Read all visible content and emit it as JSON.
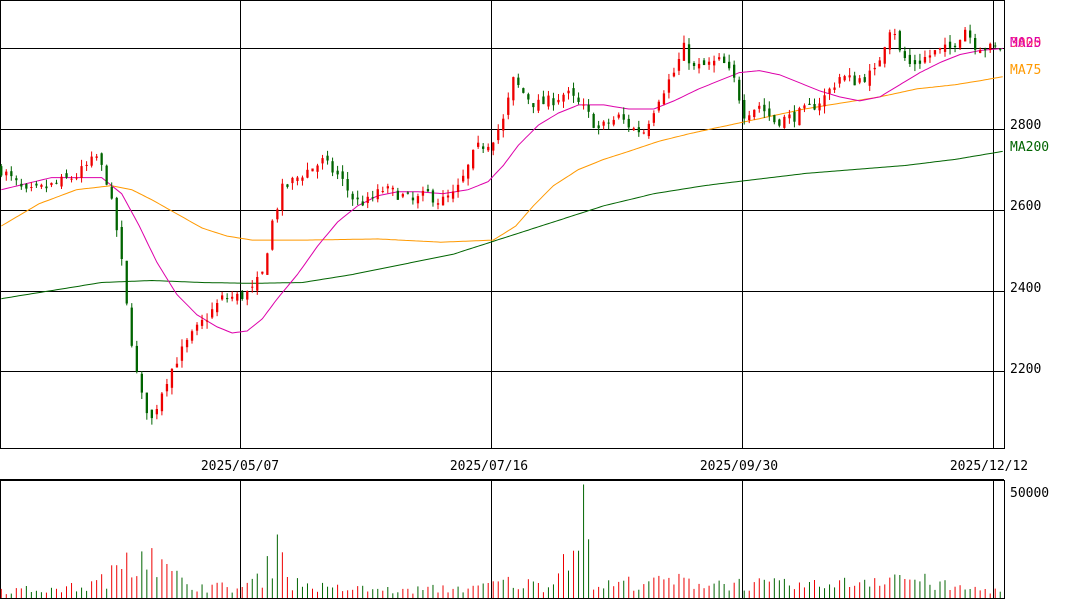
{
  "colors": {
    "up": "#ee0000",
    "down": "#006400",
    "ma25": "#dd00aa",
    "ma75": "#ff9900",
    "ma200": "#006400",
    "grid": "#000000",
    "price_text": "#ff3366"
  },
  "chart_data": [
    {
      "type": "candlestick",
      "title": "",
      "y_ticks": [
        2200,
        2400,
        2600,
        2800
      ],
      "ylim": [
        2010,
        3120
      ],
      "x_tick_labels": [
        "2025/05/07",
        "2025/07/16",
        "2025/09/30",
        "2025/12/12"
      ],
      "x_tick_index": [
        95,
        195,
        295,
        395
      ],
      "n_sessions": 400,
      "current_price_label": "3000",
      "legend": [
        "MA25",
        "MA75",
        "MA200"
      ],
      "ohlc_anchors": [
        [
          0,
          2700
        ],
        [
          10,
          2640
        ],
        [
          20,
          2660
        ],
        [
          30,
          2685
        ],
        [
          38,
          2730
        ],
        [
          42,
          2675
        ],
        [
          47,
          2520
        ],
        [
          50,
          2360
        ],
        [
          55,
          2150
        ],
        [
          60,
          2080
        ],
        [
          65,
          2170
        ],
        [
          70,
          2230
        ],
        [
          75,
          2280
        ],
        [
          80,
          2320
        ],
        [
          88,
          2380
        ],
        [
          95,
          2385
        ],
        [
          100,
          2400
        ],
        [
          104,
          2440
        ],
        [
          108,
          2570
        ],
        [
          112,
          2650
        ],
        [
          120,
          2690
        ],
        [
          128,
          2720
        ],
        [
          135,
          2680
        ],
        [
          141,
          2620
        ],
        [
          146,
          2620
        ],
        [
          152,
          2650
        ],
        [
          158,
          2640
        ],
        [
          164,
          2620
        ],
        [
          170,
          2640
        ],
        [
          175,
          2620
        ],
        [
          181,
          2640
        ],
        [
          185,
          2690
        ],
        [
          189,
          2750
        ],
        [
          195,
          2770
        ],
        [
          200,
          2820
        ],
        [
          204,
          2920
        ],
        [
          208,
          2890
        ],
        [
          213,
          2860
        ],
        [
          219,
          2870
        ],
        [
          225,
          2890
        ],
        [
          232,
          2850
        ],
        [
          238,
          2800
        ],
        [
          246,
          2830
        ],
        [
          252,
          2800
        ],
        [
          256,
          2795
        ],
        [
          262,
          2880
        ],
        [
          268,
          2940
        ],
        [
          272,
          3000
        ],
        [
          276,
          2950
        ],
        [
          282,
          2960
        ],
        [
          287,
          2970
        ],
        [
          292,
          2920
        ],
        [
          296,
          2840
        ],
        [
          302,
          2860
        ],
        [
          308,
          2820
        ],
        [
          315,
          2830
        ],
        [
          322,
          2850
        ],
        [
          328,
          2880
        ],
        [
          334,
          2930
        ],
        [
          340,
          2920
        ],
        [
          348,
          2940
        ],
        [
          355,
          3070
        ],
        [
          358,
          2990
        ],
        [
          362,
          2960
        ],
        [
          366,
          2970
        ],
        [
          372,
          2990
        ],
        [
          378,
          3000
        ],
        [
          384,
          3050
        ],
        [
          388,
          3010
        ],
        [
          393,
          3000
        ],
        [
          399,
          3000
        ]
      ],
      "ma25_anchors": [
        [
          0,
          2650
        ],
        [
          20,
          2680
        ],
        [
          40,
          2680
        ],
        [
          48,
          2640
        ],
        [
          55,
          2560
        ],
        [
          62,
          2470
        ],
        [
          70,
          2390
        ],
        [
          78,
          2340
        ],
        [
          86,
          2310
        ],
        [
          92,
          2295
        ],
        [
          98,
          2300
        ],
        [
          104,
          2330
        ],
        [
          110,
          2380
        ],
        [
          118,
          2440
        ],
        [
          126,
          2510
        ],
        [
          134,
          2570
        ],
        [
          142,
          2610
        ],
        [
          150,
          2635
        ],
        [
          158,
          2645
        ],
        [
          166,
          2645
        ],
        [
          176,
          2640
        ],
        [
          186,
          2650
        ],
        [
          194,
          2670
        ],
        [
          200,
          2710
        ],
        [
          206,
          2760
        ],
        [
          214,
          2810
        ],
        [
          222,
          2840
        ],
        [
          230,
          2860
        ],
        [
          240,
          2860
        ],
        [
          250,
          2850
        ],
        [
          260,
          2850
        ],
        [
          268,
          2870
        ],
        [
          278,
          2900
        ],
        [
          286,
          2920
        ],
        [
          294,
          2940
        ],
        [
          302,
          2945
        ],
        [
          310,
          2935
        ],
        [
          318,
          2915
        ],
        [
          326,
          2895
        ],
        [
          334,
          2880
        ],
        [
          342,
          2870
        ],
        [
          350,
          2880
        ],
        [
          358,
          2910
        ],
        [
          366,
          2940
        ],
        [
          374,
          2965
        ],
        [
          382,
          2985
        ],
        [
          390,
          2995
        ],
        [
          399,
          3000
        ]
      ],
      "ma75_anchors": [
        [
          0,
          2560
        ],
        [
          15,
          2615
        ],
        [
          30,
          2650
        ],
        [
          44,
          2660
        ],
        [
          52,
          2650
        ],
        [
          60,
          2625
        ],
        [
          70,
          2590
        ],
        [
          80,
          2555
        ],
        [
          90,
          2535
        ],
        [
          100,
          2525
        ],
        [
          120,
          2525
        ],
        [
          150,
          2528
        ],
        [
          175,
          2520
        ],
        [
          196,
          2525
        ],
        [
          205,
          2560
        ],
        [
          212,
          2610
        ],
        [
          220,
          2660
        ],
        [
          230,
          2700
        ],
        [
          240,
          2725
        ],
        [
          250,
          2745
        ],
        [
          262,
          2770
        ],
        [
          275,
          2790
        ],
        [
          290,
          2810
        ],
        [
          305,
          2830
        ],
        [
          320,
          2850
        ],
        [
          335,
          2865
        ],
        [
          350,
          2880
        ],
        [
          365,
          2900
        ],
        [
          380,
          2910
        ],
        [
          390,
          2920
        ],
        [
          399,
          2930
        ]
      ],
      "ma200_anchors": [
        [
          0,
          2380
        ],
        [
          20,
          2400
        ],
        [
          40,
          2420
        ],
        [
          60,
          2425
        ],
        [
          80,
          2420
        ],
        [
          100,
          2418
        ],
        [
          120,
          2420
        ],
        [
          140,
          2440
        ],
        [
          160,
          2465
        ],
        [
          180,
          2490
        ],
        [
          200,
          2530
        ],
        [
          220,
          2570
        ],
        [
          240,
          2610
        ],
        [
          260,
          2640
        ],
        [
          280,
          2660
        ],
        [
          300,
          2675
        ],
        [
          320,
          2690
        ],
        [
          340,
          2700
        ],
        [
          360,
          2710
        ],
        [
          380,
          2725
        ],
        [
          399,
          2745
        ]
      ]
    },
    {
      "type": "bar",
      "title": "",
      "y_ticks": [
        50000
      ],
      "ylim": [
        0,
        52000
      ],
      "series": [
        {
          "values_anchor": [
            [
              0,
              4000
            ],
            [
              20,
              4500
            ],
            [
              35,
              6000
            ],
            [
              45,
              12000
            ],
            [
              50,
              20000
            ],
            [
              55,
              25000
            ],
            [
              60,
              22000
            ],
            [
              65,
              14000
            ],
            [
              72,
              9000
            ],
            [
              80,
              6000
            ],
            [
              95,
              5000
            ],
            [
              105,
              11000
            ],
            [
              110,
              28000
            ],
            [
              115,
              8000
            ],
            [
              130,
              5000
            ],
            [
              160,
              4000
            ],
            [
              190,
              5500
            ],
            [
              200,
              8000
            ],
            [
              220,
              6000
            ],
            [
              232,
              50000
            ],
            [
              235,
              6000
            ],
            [
              260,
              9000
            ],
            [
              300,
              7000
            ],
            [
              330,
              6000
            ],
            [
              355,
              12000
            ],
            [
              380,
              5000
            ],
            [
              399,
              4000
            ]
          ]
        }
      ]
    }
  ]
}
